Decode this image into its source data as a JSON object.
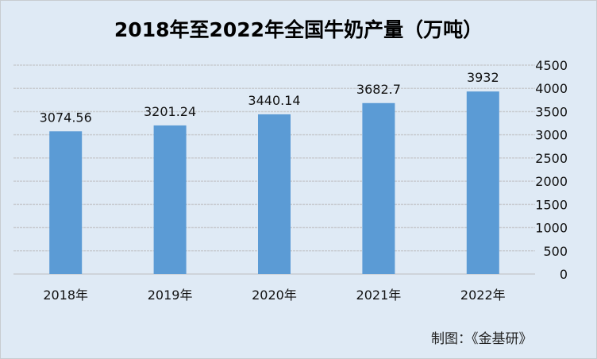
{
  "chart_data": {
    "type": "bar",
    "title": "2018年至2022年全国牛奶产量（万吨）",
    "categories": [
      "2018年",
      "2019年",
      "2020年",
      "2021年",
      "2022年"
    ],
    "values": [
      3074.56,
      3201.24,
      3440.14,
      3682.7,
      3932
    ],
    "data_labels": [
      "3074.56",
      "3201.24",
      "3440.14",
      "3682.7",
      "3932"
    ],
    "ylim": [
      0,
      4500
    ],
    "yticks": [
      0,
      500,
      1000,
      1500,
      2000,
      2500,
      3000,
      3500,
      4000,
      4500
    ],
    "yaxis_position": "right",
    "grid": true,
    "bar_color": "#5b9bd5",
    "xlabel": "",
    "ylabel": ""
  },
  "credit": "制图：《金基研》"
}
